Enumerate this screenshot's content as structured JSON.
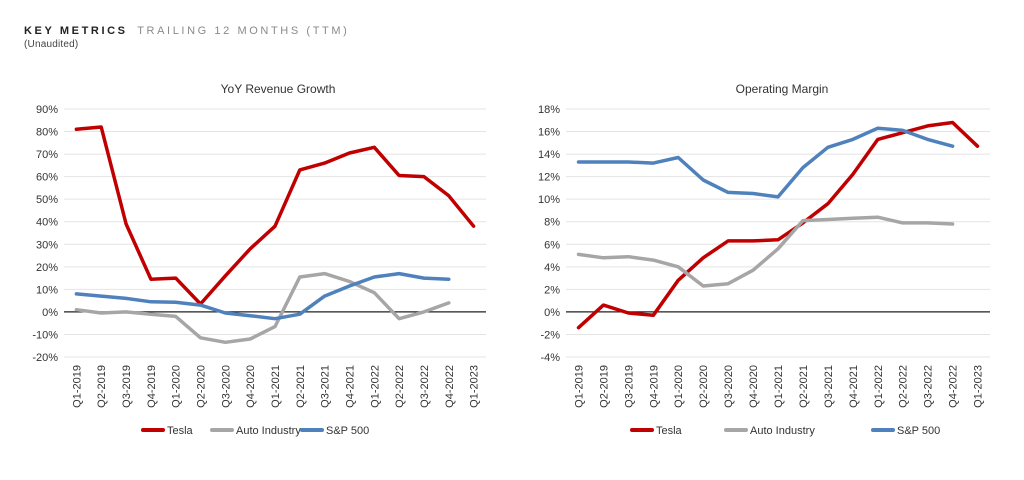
{
  "header": {
    "title": "KEY METRICS",
    "subtitle": "TRAILING 12 MONTHS (TTM)",
    "note": "(Unaudited)"
  },
  "colors": {
    "tesla": "#c00000",
    "auto": "#a6a6a6",
    "sp500": "#4f81bd",
    "grid": "#e4e4e4",
    "axis": "#222222"
  },
  "chart_data": [
    {
      "type": "line",
      "title": "YoY Revenue Growth",
      "categories": [
        "Q1-2019",
        "Q2-2019",
        "Q3-2019",
        "Q4-2019",
        "Q1-2020",
        "Q2-2020",
        "Q3-2020",
        "Q4-2020",
        "Q1-2021",
        "Q2-2021",
        "Q3-2021",
        "Q4-2021",
        "Q1-2022",
        "Q2-2022",
        "Q3-2022",
        "Q4-2022",
        "Q1-2023"
      ],
      "yticks": [
        -20,
        -10,
        0,
        10,
        20,
        30,
        40,
        50,
        60,
        70,
        80,
        90
      ],
      "ytick_labels": [
        "-20%",
        "-10%",
        "0%",
        "10%",
        "20%",
        "30%",
        "40%",
        "50%",
        "60%",
        "70%",
        "80%",
        "90%"
      ],
      "ylim": [
        -20,
        90
      ],
      "unit": "%",
      "legend_position": "bottom",
      "series": [
        {
          "name": "Tesla",
          "color_key": "tesla",
          "values": [
            81,
            82,
            39,
            14.5,
            15,
            3.5,
            16,
            28,
            38,
            63,
            66,
            70.5,
            73,
            60.5,
            60,
            51.5,
            38
          ]
        },
        {
          "name": "Auto Industry",
          "color_key": "auto",
          "values": [
            1,
            -0.5,
            0,
            -1,
            -2,
            -11.5,
            -13.5,
            -12,
            -6.5,
            15.5,
            17,
            13.5,
            8.5,
            -3,
            0,
            4,
            null
          ]
        },
        {
          "name": "S&P 500",
          "color_key": "sp500",
          "values": [
            8,
            7,
            6,
            4.5,
            4.3,
            3,
            -0.5,
            -1.7,
            -3,
            -1,
            7,
            11.5,
            15.5,
            17,
            15,
            14.5,
            null
          ]
        }
      ]
    },
    {
      "type": "line",
      "title": "Operating Margin",
      "categories": [
        "Q1-2019",
        "Q2-2019",
        "Q3-2019",
        "Q4-2019",
        "Q1-2020",
        "Q2-2020",
        "Q3-2020",
        "Q4-2020",
        "Q1-2021",
        "Q2-2021",
        "Q3-2021",
        "Q4-2021",
        "Q1-2022",
        "Q2-2022",
        "Q3-2022",
        "Q4-2022",
        "Q1-2023"
      ],
      "yticks": [
        -4,
        -2,
        0,
        2,
        4,
        6,
        8,
        10,
        12,
        14,
        16,
        18
      ],
      "ytick_labels": [
        "-4%",
        "-2%",
        "0%",
        "2%",
        "4%",
        "6%",
        "8%",
        "10%",
        "12%",
        "14%",
        "16%",
        "18%"
      ],
      "ylim": [
        -4,
        18
      ],
      "unit": "%",
      "legend_position": "bottom",
      "series": [
        {
          "name": "Tesla",
          "color_key": "tesla",
          "values": [
            -1.4,
            0.6,
            -0.1,
            -0.3,
            2.8,
            4.8,
            6.3,
            6.3,
            6.4,
            7.9,
            9.6,
            12.2,
            15.3,
            15.9,
            16.5,
            16.8,
            14.7
          ]
        },
        {
          "name": "Auto Industry",
          "color_key": "auto",
          "values": [
            5.1,
            4.8,
            4.9,
            4.6,
            4,
            2.3,
            2.5,
            3.7,
            5.6,
            8.1,
            8.2,
            8.3,
            8.4,
            7.9,
            7.9,
            7.8,
            null
          ]
        },
        {
          "name": "S&P 500",
          "color_key": "sp500",
          "values": [
            13.3,
            13.3,
            13.3,
            13.2,
            13.7,
            11.7,
            10.6,
            10.5,
            10.2,
            12.8,
            14.6,
            15.3,
            16.3,
            16.1,
            15.3,
            14.7,
            null
          ]
        }
      ]
    }
  ]
}
